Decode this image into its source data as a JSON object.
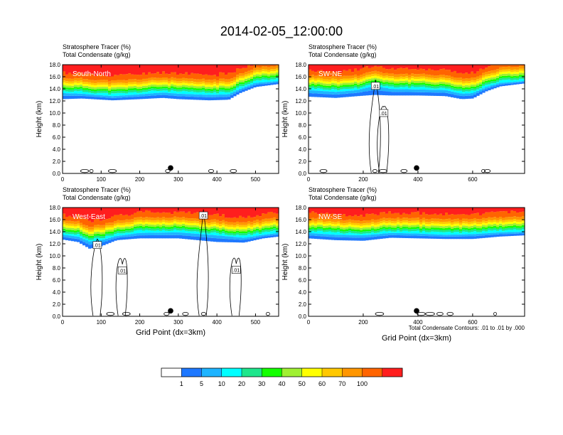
{
  "title": "2014-02-05_12:00:00",
  "colors": {
    "levels": [
      "#ffffff",
      "#1e78ff",
      "#1eb4ff",
      "#00ffff",
      "#1ee68c",
      "#14ff00",
      "#a0f032",
      "#ffff00",
      "#ffc800",
      "#ff9600",
      "#ff6400",
      "#ff1e1e"
    ],
    "contour": "#000000",
    "marker": "#000000"
  },
  "colorbar": {
    "labels": [
      "1",
      "5",
      "10",
      "20",
      "30",
      "40",
      "50",
      "60",
      "70",
      "100"
    ]
  },
  "contour_note": "Total Condensate Contours: .01 to .01 by .000",
  "chart_data": [
    {
      "type": "heatmap",
      "id": "sn",
      "label": "South-North",
      "title_lines": [
        "Stratosphere Tracer   (%)",
        "Total Condensate   (g/kg)"
      ],
      "ylabel": "Height (km)",
      "xlabel": "",
      "xlim": [
        0,
        560
      ],
      "ylim": [
        0,
        18
      ],
      "xticks": [
        0,
        100,
        200,
        300,
        400,
        500
      ],
      "yticks": [
        "0.0",
        "2.0",
        "4.0",
        "6.0",
        "8.0",
        "10.0",
        "12.0",
        "14.0",
        "16.0",
        "18.0"
      ],
      "marker_x": 280,
      "profile": [
        [
          0,
          13.3,
          12.3
        ],
        [
          50,
          13.2,
          12.4
        ],
        [
          130,
          12.8,
          12.1
        ],
        [
          200,
          13.1,
          12.3
        ],
        [
          260,
          13.4,
          12.5
        ],
        [
          300,
          13.2,
          12.3
        ],
        [
          380,
          13.0,
          12.1
        ],
        [
          430,
          13.1,
          12.2
        ],
        [
          460,
          14.0,
          13.3
        ],
        [
          500,
          15.0,
          14.3
        ],
        [
          560,
          15.3,
          14.8
        ]
      ],
      "contour_labels": []
    },
    {
      "type": "heatmap",
      "id": "swne",
      "label": "SW-NE",
      "title_lines": [
        "Stratosphere Tracer   (%)",
        "Total Condensate   (g/kg)"
      ],
      "ylabel": "Height (km)",
      "xlabel": "",
      "xlim": [
        0,
        790
      ],
      "ylim": [
        0,
        18
      ],
      "xticks": [
        0,
        200,
        400,
        600
      ],
      "yticks": [
        "0.0",
        "2.0",
        "4.0",
        "6.0",
        "8.0",
        "10.0",
        "12.0",
        "14.0",
        "16.0",
        "18.0"
      ],
      "marker_x": 395,
      "profile": [
        [
          0,
          13.8,
          12.7
        ],
        [
          100,
          13.5,
          12.5
        ],
        [
          180,
          13.8,
          12.8
        ],
        [
          240,
          14.5,
          13.0
        ],
        [
          300,
          14.0,
          12.9
        ],
        [
          400,
          13.9,
          12.9
        ],
        [
          500,
          13.8,
          12.8
        ],
        [
          560,
          13.2,
          12.3
        ],
        [
          600,
          13.3,
          12.4
        ],
        [
          650,
          14.3,
          13.6
        ],
        [
          700,
          15.0,
          14.4
        ],
        [
          790,
          15.3,
          14.9
        ]
      ],
      "contour_labels": [
        {
          "text": ".01",
          "x": 245,
          "y": 14.5
        },
        {
          "text": ".01",
          "x": 275,
          "y": 10.0
        }
      ]
    },
    {
      "type": "heatmap",
      "id": "we",
      "label": "West-East",
      "title_lines": [
        "Stratosphere Tracer   (%)",
        "Total Condensate   (g/kg)"
      ],
      "ylabel": "Height (km)",
      "xlabel": "Grid Point (dx=3km)",
      "xlim": [
        0,
        560
      ],
      "ylim": [
        0,
        18
      ],
      "xticks": [
        0,
        100,
        200,
        300,
        400,
        500
      ],
      "yticks": [
        "0.0",
        "2.0",
        "4.0",
        "6.0",
        "8.0",
        "10.0",
        "12.0",
        "14.0",
        "16.0",
        "18.0"
      ],
      "marker_x": 280,
      "profile": [
        [
          0,
          13.5,
          12.7
        ],
        [
          40,
          13.2,
          12.3
        ],
        [
          70,
          12.4,
          11.2
        ],
        [
          100,
          12.6,
          11.6
        ],
        [
          140,
          13.3,
          12.6
        ],
        [
          200,
          13.8,
          12.9
        ],
        [
          300,
          13.9,
          12.9
        ],
        [
          400,
          13.4,
          12.3
        ],
        [
          470,
          13.0,
          12.2
        ],
        [
          520,
          13.5,
          12.9
        ],
        [
          560,
          13.8,
          13.2
        ]
      ],
      "contour_labels": [
        {
          "text": ".01",
          "x": 90,
          "y": 11.8
        },
        {
          "text": ".01",
          "x": 155,
          "y": 7.6
        },
        {
          "text": ".01",
          "x": 365,
          "y": 16.7
        },
        {
          "text": ".01",
          "x": 450,
          "y": 7.7
        }
      ]
    },
    {
      "type": "heatmap",
      "id": "nwse",
      "label": "NW-SE",
      "title_lines": [
        "Stratosphere Tracer   (%)",
        "Total Condensate   (g/kg)"
      ],
      "ylabel": "Height (km)",
      "xlabel": "Grid Point (dx=3km)",
      "xlim": [
        0,
        790
      ],
      "ylim": [
        0,
        18
      ],
      "xticks": [
        0,
        200,
        400,
        600
      ],
      "yticks": [
        "0.0",
        "2.0",
        "4.0",
        "6.0",
        "8.0",
        "10.0",
        "12.0",
        "14.0",
        "16.0",
        "18.0"
      ],
      "marker_x": 395,
      "profile": [
        [
          0,
          13.8,
          12.9
        ],
        [
          100,
          13.5,
          12.6
        ],
        [
          200,
          13.4,
          12.5
        ],
        [
          300,
          13.8,
          13.0
        ],
        [
          400,
          13.7,
          12.9
        ],
        [
          500,
          13.5,
          12.8
        ],
        [
          600,
          13.6,
          12.8
        ],
        [
          700,
          13.9,
          13.2
        ],
        [
          790,
          14.0,
          13.4
        ]
      ],
      "contour_labels": []
    }
  ]
}
